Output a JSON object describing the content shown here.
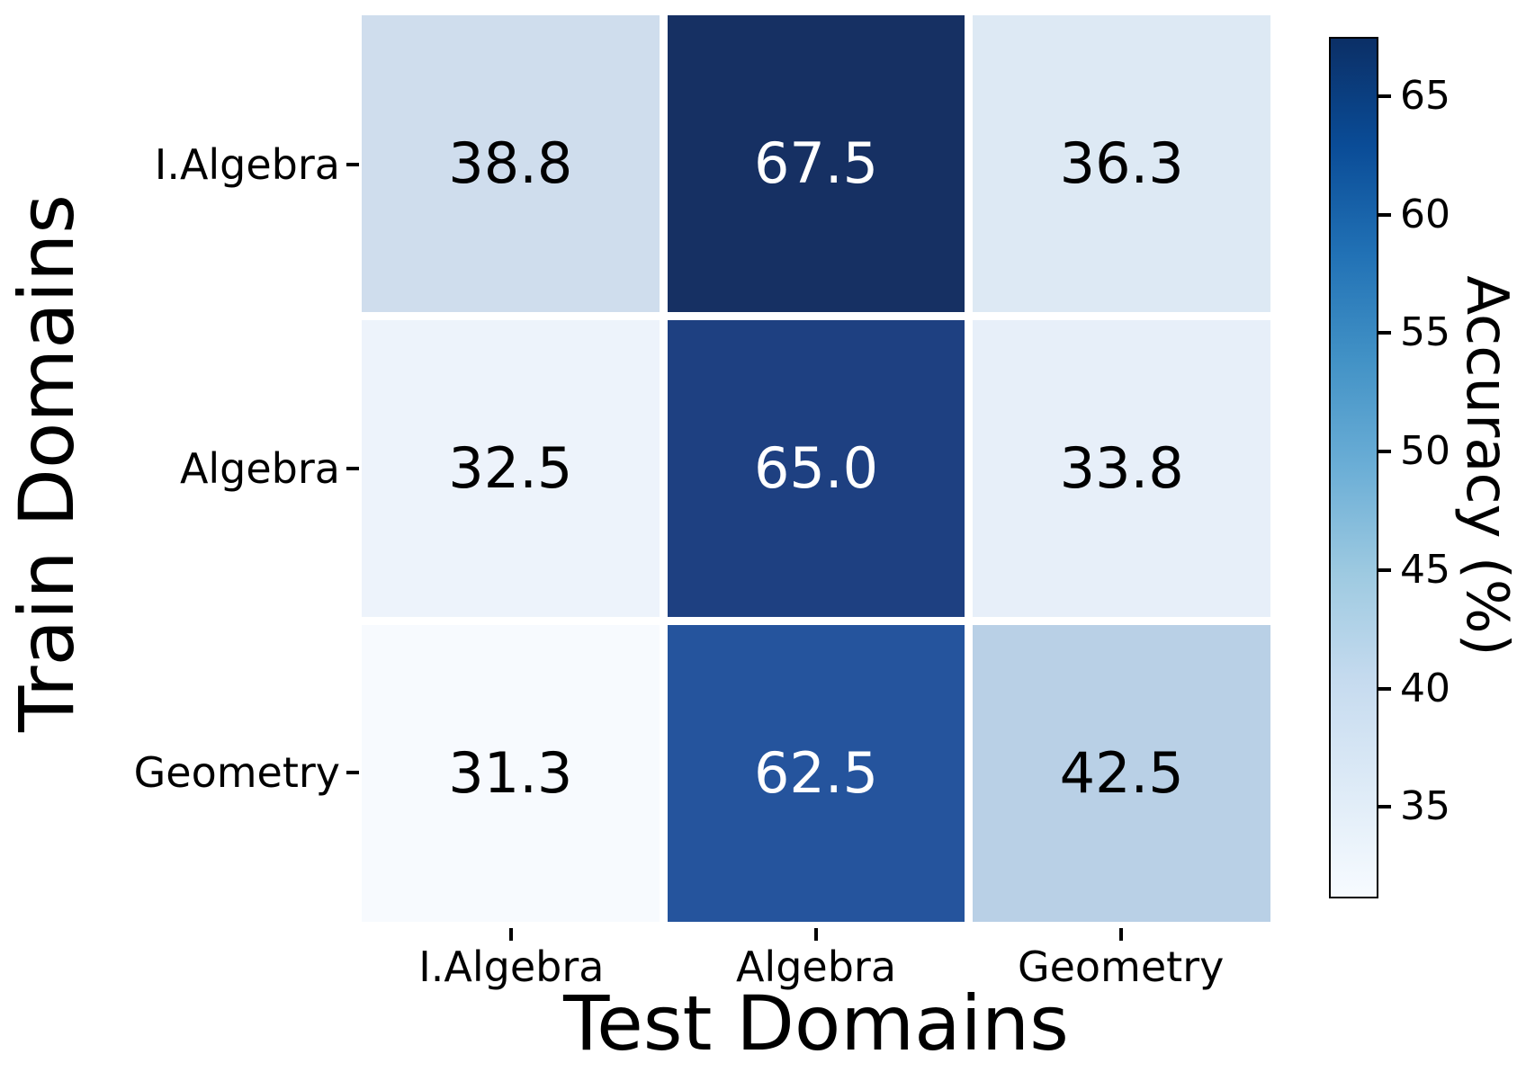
{
  "chart_data": {
    "type": "heatmap",
    "title": "",
    "xlabel": "Test Domains",
    "ylabel": "Train Domains",
    "x_categories": [
      "I.Algebra",
      "Algebra",
      "Geometry"
    ],
    "y_categories": [
      "I.Algebra",
      "Algebra",
      "Geometry"
    ],
    "values": [
      [
        38.8,
        67.5,
        36.3
      ],
      [
        32.5,
        65.0,
        33.8
      ],
      [
        31.3,
        62.5,
        42.5
      ]
    ],
    "value_labels": [
      [
        "38.8",
        "67.5",
        "36.3"
      ],
      [
        "32.5",
        "65.0",
        "33.8"
      ],
      [
        "31.3",
        "62.5",
        "42.5"
      ]
    ],
    "cell_colors": [
      [
        "#cfdded",
        "#163063",
        "#dde9f4"
      ],
      [
        "#edf3fb",
        "#1e4081",
        "#e7eff9"
      ],
      [
        "#f7fafe",
        "#25549d",
        "#b9d0e6"
      ]
    ],
    "cell_text_colors": [
      [
        "#000000",
        "#ffffff",
        "#000000"
      ],
      [
        "#000000",
        "#ffffff",
        "#000000"
      ],
      [
        "#000000",
        "#ffffff",
        "#000000"
      ]
    ],
    "colormap": "Blues",
    "grid": false,
    "vmin": 31.3,
    "vmax": 67.5,
    "colorbar": {
      "label": "Accuracy (%)",
      "tick_values": [
        65,
        60,
        55,
        50,
        45,
        40,
        35
      ],
      "tick_labels": [
        "65",
        "60",
        "55",
        "50",
        "45",
        "40",
        "35"
      ],
      "gradient_stops": [
        {
          "pos": 0,
          "color": "#0b2f66"
        },
        {
          "pos": 12.5,
          "color": "#0a4c97"
        },
        {
          "pos": 25,
          "color": "#2171b5"
        },
        {
          "pos": 37.5,
          "color": "#4292c6"
        },
        {
          "pos": 50,
          "color": "#6baed6"
        },
        {
          "pos": 62.5,
          "color": "#9ecae1"
        },
        {
          "pos": 75,
          "color": "#c6dbef"
        },
        {
          "pos": 87.5,
          "color": "#deebf7"
        },
        {
          "pos": 100,
          "color": "#f7fbff"
        }
      ]
    }
  }
}
